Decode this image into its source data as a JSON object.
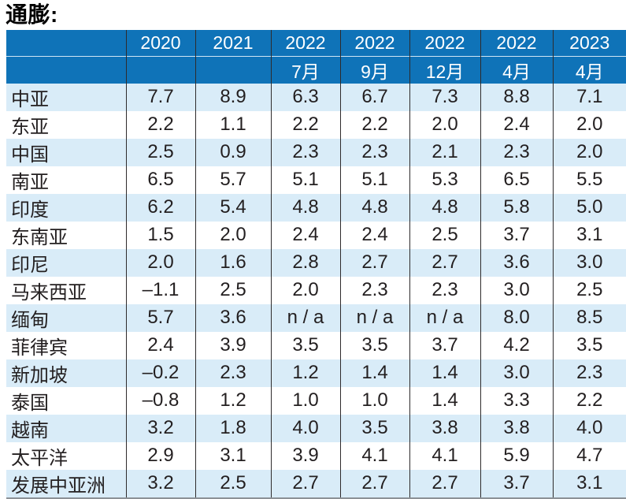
{
  "title": "通膨:",
  "colors": {
    "header_bg": "#0f73b8",
    "header_text": "#ffffff",
    "row_alt_bg": "#d9ecf8",
    "row_bg": "#ffffff",
    "grid_line": "#2e2b2c",
    "header_divider": "#cfe6f5",
    "text_color": "#231f20",
    "bottom_line": "#8c9196"
  },
  "chart_data": {
    "type": "table",
    "title": "通膨:",
    "columns": [
      {
        "year": "",
        "month": ""
      },
      {
        "year": "2020",
        "month": ""
      },
      {
        "year": "2021",
        "month": ""
      },
      {
        "year": "2022",
        "month": "7月"
      },
      {
        "year": "2022",
        "month": "9月"
      },
      {
        "year": "2022",
        "month": "12月"
      },
      {
        "year": "2022",
        "month": "4月"
      },
      {
        "year": "2023",
        "month": "4月"
      }
    ],
    "rows": [
      {
        "label": "中亚",
        "values": [
          "7.7",
          "8.9",
          "6.3",
          "6.7",
          "7.3",
          "8.8",
          "7.1"
        ]
      },
      {
        "label": "东亚",
        "values": [
          "2.2",
          "1.1",
          "2.2",
          "2.2",
          "2.0",
          "2.4",
          "2.0"
        ]
      },
      {
        "label": "中国",
        "values": [
          "2.5",
          "0.9",
          "2.3",
          "2.3",
          "2.1",
          "2.3",
          "2.0"
        ]
      },
      {
        "label": "南亚",
        "values": [
          "6.5",
          "5.7",
          "5.1",
          "5.1",
          "5.3",
          "6.5",
          "5.5"
        ]
      },
      {
        "label": "印度",
        "values": [
          "6.2",
          "5.4",
          "4.8",
          "4.8",
          "4.8",
          "5.8",
          "5.0"
        ]
      },
      {
        "label": "东南亚",
        "values": [
          "1.5",
          "2.0",
          "2.4",
          "2.4",
          "2.5",
          "3.7",
          "3.1"
        ]
      },
      {
        "label": "印尼",
        "values": [
          "2.0",
          "1.6",
          "2.8",
          "2.7",
          "2.7",
          "3.6",
          "3.0"
        ]
      },
      {
        "label": "马来西亚",
        "values": [
          "–1.1",
          "2.5",
          "2.0",
          "2.3",
          "2.3",
          "3.0",
          "2.5"
        ]
      },
      {
        "label": "缅甸",
        "values": [
          "5.7",
          "3.6",
          "n / a",
          "n / a",
          "n / a",
          "8.0",
          "8.5"
        ]
      },
      {
        "label": "菲律宾",
        "values": [
          "2.4",
          "3.9",
          "3.5",
          "3.5",
          "3.7",
          "4.2",
          "3.5"
        ]
      },
      {
        "label": "新加坡",
        "values": [
          "–0.2",
          "2.3",
          "1.2",
          "1.4",
          "1.4",
          "3.0",
          "2.3"
        ]
      },
      {
        "label": "泰国",
        "values": [
          "–0.8",
          "1.2",
          "1.0",
          "1.0",
          "1.4",
          "3.3",
          "2.2"
        ]
      },
      {
        "label": "越南",
        "values": [
          "3.2",
          "1.8",
          "4.0",
          "3.5",
          "3.8",
          "3.8",
          "4.0"
        ]
      },
      {
        "label": "太平洋",
        "values": [
          "2.9",
          "3.1",
          "3.9",
          "4.1",
          "4.1",
          "5.9",
          "4.7"
        ]
      },
      {
        "label": "发展中亚洲",
        "values": [
          "3.2",
          "2.5",
          "2.7",
          "2.7",
          "2.7",
          "3.7",
          "3.1"
        ]
      }
    ]
  }
}
